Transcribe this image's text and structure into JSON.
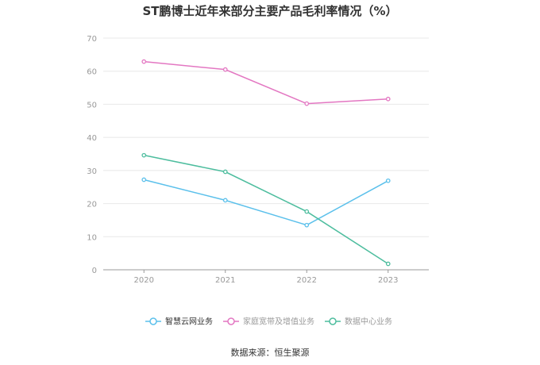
{
  "chart_data": {
    "type": "line",
    "title": "ST鹏博士近年来部分主要产品毛利率情况（%）",
    "categories": [
      "2020",
      "2021",
      "2022",
      "2023"
    ],
    "ylim": [
      0,
      70
    ],
    "yticks": [
      "0",
      "10",
      "20",
      "30",
      "40",
      "50",
      "60",
      "70"
    ],
    "grid": true,
    "legend_position": "bottom",
    "series": [
      {
        "name": "智慧云网业务",
        "color": "#5bc0eb",
        "values": [
          27.2,
          21.0,
          13.5,
          26.9
        ]
      },
      {
        "name": "家庭宽带及增值业务",
        "color": "#e377c2",
        "values": [
          62.9,
          60.5,
          50.2,
          51.6
        ]
      },
      {
        "name": "数据中心业务",
        "color": "#4dbd9e",
        "values": [
          34.6,
          29.6,
          17.6,
          1.8
        ]
      }
    ]
  },
  "source": "数据来源：恒生聚源"
}
